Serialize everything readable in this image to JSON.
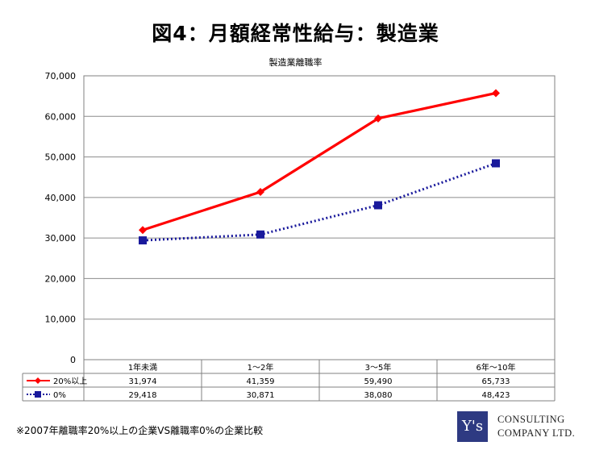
{
  "page": {
    "title": "図4：月額経常性給与：製造業",
    "footnote": "※2007年離職率20%以上の企業VS離職率0%の企業比較",
    "logo": {
      "mark": "Y's",
      "line1": "CONSULTING",
      "line2": "COMPANY LTD."
    }
  },
  "chart_data": {
    "type": "line",
    "title": "製造業離職率",
    "categories": [
      "1年未満",
      "1～2年",
      "3～5年",
      "6年～10年"
    ],
    "y_ticks": [
      "0",
      "10,000",
      "20,000",
      "30,000",
      "40,000",
      "50,000",
      "60,000",
      "70,000"
    ],
    "ylim": [
      0,
      70000
    ],
    "grid": true,
    "legend": "data-table-left",
    "series": [
      {
        "name": "20%以上",
        "values": [
          31974,
          41359,
          59490,
          65733
        ],
        "labels": [
          "31,974",
          "41,359",
          "59,490",
          "65,733"
        ],
        "color": "#ff0000",
        "marker": "diamond",
        "line_style": "solid"
      },
      {
        "name": "0%",
        "values": [
          29418,
          30871,
          38080,
          48423
        ],
        "labels": [
          "29,418",
          "30,871",
          "38,080",
          "48,423"
        ],
        "color": "#1a1a9c",
        "marker": "square",
        "line_style": "dotted"
      }
    ]
  }
}
